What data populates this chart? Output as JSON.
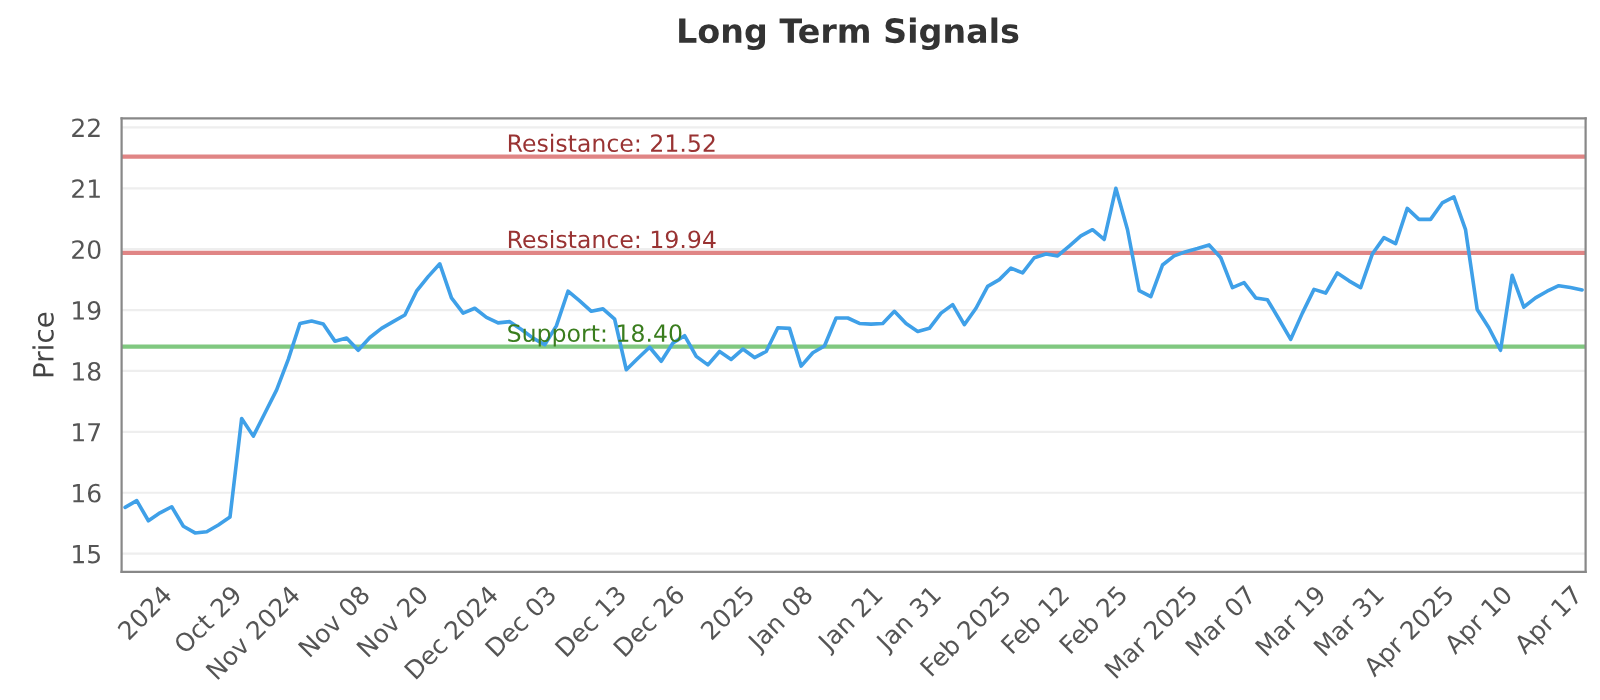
{
  "chart_data": {
    "type": "line",
    "title": "Long Term Signals",
    "ylabel": "Price",
    "categories": [
      null,
      null,
      null,
      "2024",
      null,
      null,
      null,
      null,
      null,
      "Oct 29",
      null,
      null,
      null,
      null,
      "Nov 2024",
      null,
      null,
      null,
      null,
      null,
      "Nov 08",
      null,
      null,
      null,
      null,
      "Nov 20",
      null,
      null,
      null,
      null,
      null,
      "Dec 2024",
      null,
      null,
      null,
      null,
      "Dec 03",
      null,
      null,
      null,
      null,
      null,
      "Dec 13",
      null,
      null,
      null,
      null,
      "Dec 26",
      null,
      null,
      null,
      null,
      null,
      "2025",
      null,
      null,
      null,
      null,
      "Jan 08",
      null,
      null,
      null,
      null,
      null,
      "Jan 21",
      null,
      null,
      null,
      null,
      "Jan 31",
      null,
      null,
      null,
      null,
      null,
      "Feb 2025",
      null,
      null,
      null,
      null,
      "Feb 12",
      null,
      null,
      null,
      null,
      "Feb 25",
      null,
      null,
      null,
      null,
      null,
      "Mar 2025",
      null,
      null,
      null,
      null,
      "Mar 07",
      null,
      null,
      null,
      null,
      null,
      "Mar 19",
      null,
      null,
      null,
      null,
      "Mar 31",
      null,
      null,
      null,
      null,
      null,
      "Apr 2025",
      null,
      null,
      null,
      null,
      "Apr 10",
      null,
      null,
      null,
      null,
      null,
      "Apr 17",
      null
    ],
    "series": [
      {
        "color": "#3fa0e8",
        "values": [
          15.76,
          15.87,
          15.54,
          15.67,
          15.77,
          15.45,
          15.34,
          15.36,
          15.47,
          15.6,
          17.22,
          16.93,
          17.31,
          17.69,
          18.19,
          18.78,
          18.82,
          18.77,
          18.49,
          18.54,
          18.34,
          18.55,
          18.7,
          18.81,
          18.92,
          19.31,
          19.55,
          19.76,
          19.2,
          18.95,
          19.03,
          18.88,
          18.79,
          18.81,
          18.68,
          18.54,
          18.43,
          18.74,
          19.31,
          19.15,
          18.98,
          19.02,
          18.85,
          18.02,
          18.21,
          18.39,
          18.16,
          18.46,
          18.58,
          18.24,
          18.1,
          18.32,
          18.19,
          18.36,
          18.22,
          18.32,
          18.71,
          18.7,
          18.08,
          18.3,
          18.41,
          18.87,
          18.87,
          18.78,
          18.77,
          18.78,
          18.98,
          18.78,
          18.65,
          18.7,
          18.95,
          19.09,
          18.76,
          19.03,
          19.39,
          19.5,
          19.69,
          19.61,
          19.86,
          19.92,
          19.89,
          20.05,
          20.22,
          20.32,
          20.16,
          21.0,
          20.32,
          19.32,
          19.22,
          19.74,
          19.89,
          19.96,
          20.01,
          20.07,
          19.86,
          19.37,
          19.45,
          19.2,
          19.17,
          18.85,
          18.52,
          18.95,
          19.34,
          19.28,
          19.61,
          19.48,
          19.37,
          19.92,
          20.19,
          20.09,
          20.67,
          20.49,
          20.49,
          20.76,
          20.86,
          20.32,
          19.01,
          18.71,
          18.34,
          19.57,
          19.05,
          19.2,
          19.31,
          19.4,
          19.37,
          19.33
        ]
      }
    ],
    "ylim": [
      14.7,
      22.15
    ],
    "yticks": [
      15,
      16,
      17,
      18,
      19,
      20,
      21,
      22
    ],
    "grid": "y",
    "ref_lines": [
      {
        "axis": "y",
        "value": 21.52,
        "label": "Resistance: 21.52",
        "color": "#e08585"
      },
      {
        "axis": "y",
        "value": 19.94,
        "label": "Resistance: 19.94",
        "color": "#e08585"
      },
      {
        "axis": "y",
        "value": 18.4,
        "label": "Support: 18.40",
        "color": "#80c880"
      }
    ]
  }
}
